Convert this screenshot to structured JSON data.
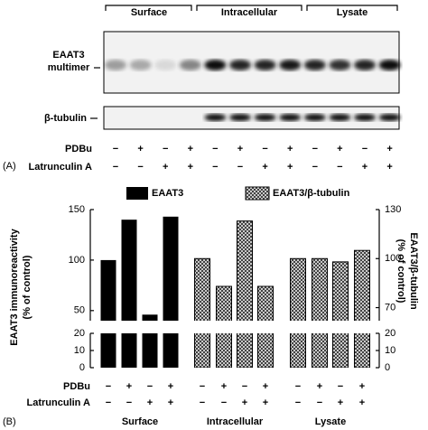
{
  "panel_a": {
    "label": "(A)",
    "groups": [
      "Surface",
      "Intracellular",
      "Lysate"
    ],
    "blot_label_1": "EAAT3",
    "blot_label_2": "multimer",
    "blot_label_3": "β-tubulin",
    "rows": [
      {
        "name": "PDBu",
        "signs": [
          "−",
          "+",
          "−",
          "+",
          "−",
          "+",
          "−",
          "+",
          "−",
          "+",
          "−",
          "+"
        ]
      },
      {
        "name": "Latrunculin A",
        "signs": [
          "−",
          "−",
          "+",
          "+",
          "−",
          "−",
          "+",
          "+",
          "−",
          "−",
          "+",
          "+"
        ]
      }
    ]
  },
  "chart_data": {
    "type": "bar",
    "panel_label": "(B)",
    "groups": [
      "Surface",
      "Intracellular",
      "Lysate"
    ],
    "ylabel": "EAAT3 immunoreactivity",
    "ylabel_sub": "(% of control)",
    "y2label": "EAAT3/β-tubulin",
    "y2label_sub": "(% of control)",
    "ylim": [
      40,
      150
    ],
    "yticks": [
      50,
      100,
      150
    ],
    "ylim_lower": [
      0,
      20
    ],
    "yticks_lower": [
      0,
      10,
      20
    ],
    "y2lim": [
      62,
      130
    ],
    "y2ticks": [
      70,
      100,
      130
    ],
    "y2lim_lower": [
      0,
      20
    ],
    "y2ticks_lower": [
      0,
      10,
      20
    ],
    "series": [
      {
        "name": "EAAT3",
        "color": "#000000",
        "axis": "y",
        "values": [
          100,
          140,
          46,
          143,
          null,
          null,
          null,
          null,
          null,
          null,
          null,
          null
        ]
      },
      {
        "name": "EAAT3/β-tubulin",
        "color": "#444444",
        "pattern": "crosshatch",
        "axis": "y2",
        "values": [
          null,
          null,
          null,
          null,
          100,
          83,
          123,
          83,
          100,
          100,
          98,
          105
        ]
      }
    ],
    "rows": [
      {
        "name": "PDBu",
        "signs": [
          "−",
          "+",
          "−",
          "+",
          "−",
          "+",
          "−",
          "+",
          "−",
          "+",
          "−",
          "+"
        ]
      },
      {
        "name": "Latrunculin A",
        "signs": [
          "−",
          "−",
          "+",
          "+",
          "−",
          "−",
          "+",
          "+",
          "−",
          "−",
          "+",
          "+"
        ]
      }
    ]
  }
}
